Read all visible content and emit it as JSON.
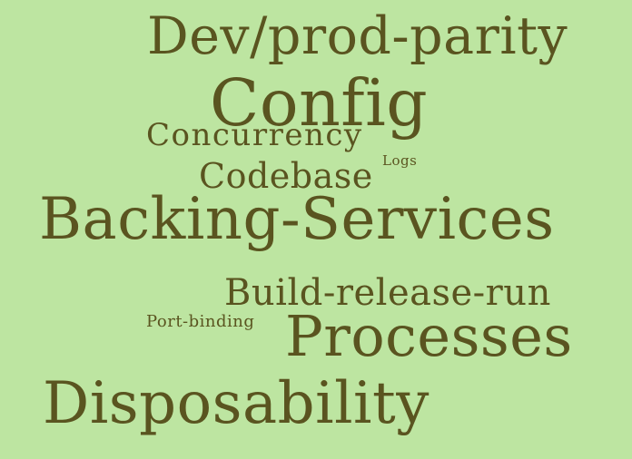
{
  "cloud": {
    "background": "#bde5a1",
    "text_color": "#5a5420",
    "words": {
      "dev_prod_parity": "Dev/prod-parity",
      "config": "Config",
      "concurrency": "Concurrency",
      "codebase": "Codebase",
      "logs": "Logs",
      "backing_services": "Backing-Services",
      "build_release_run": "Build-release-run",
      "port_binding": "Port-binding",
      "processes": "Processes",
      "disposability": "Disposability"
    }
  }
}
